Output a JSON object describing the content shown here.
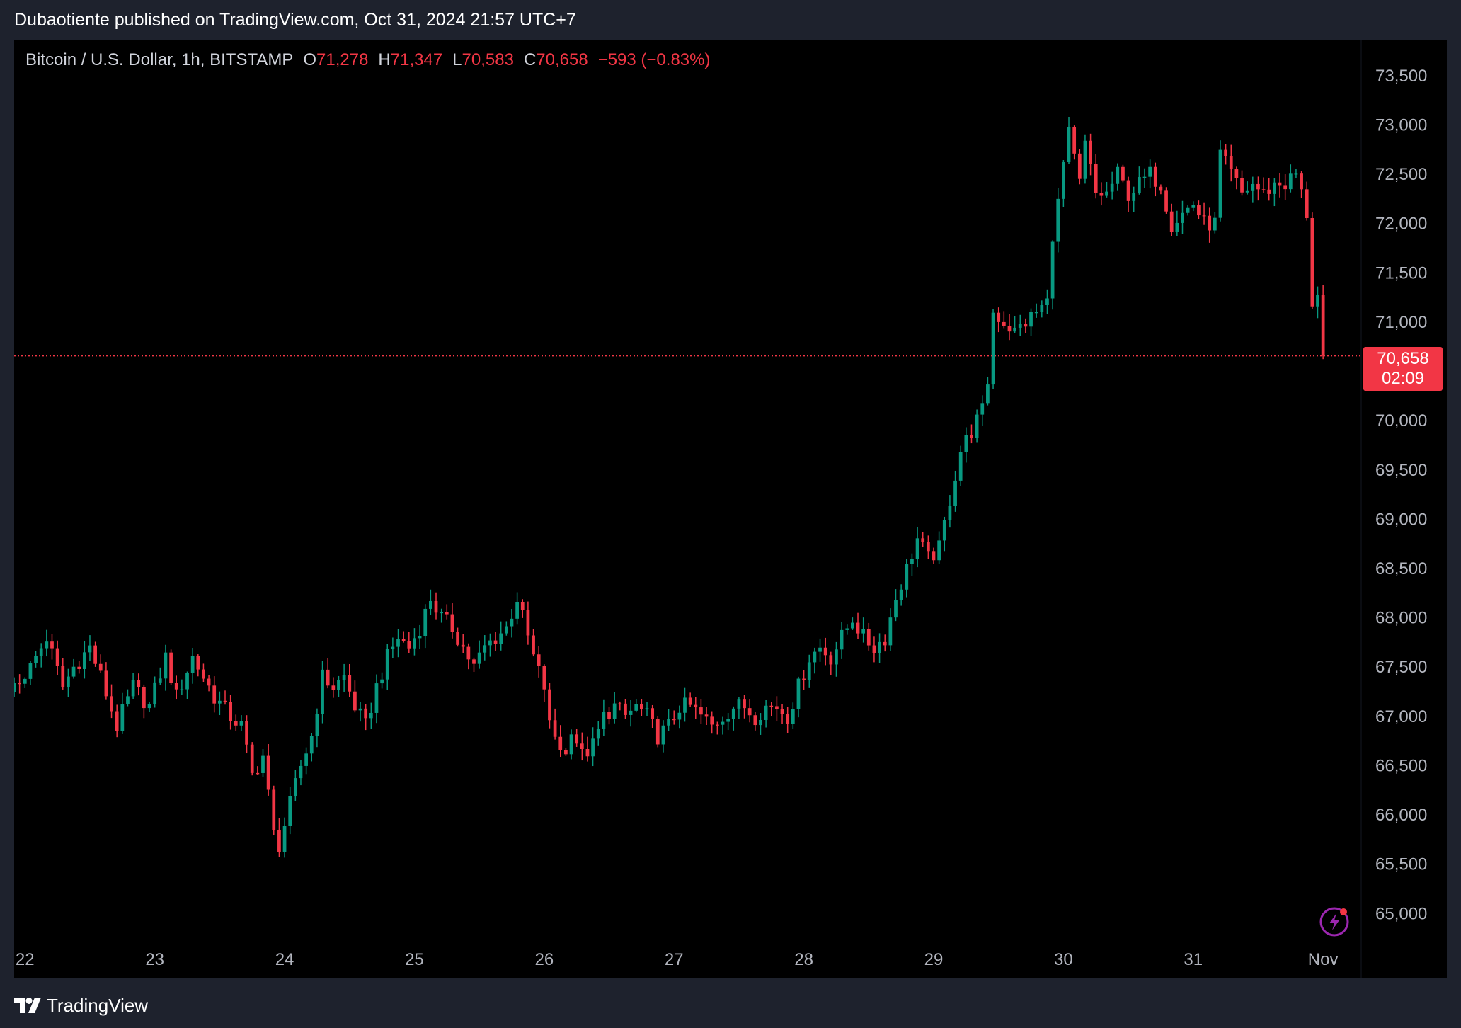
{
  "header": {
    "published": "Dubaotiente published on TradingView.com, Oct 31, 2024 21:57 UTC+7"
  },
  "legend": {
    "symbol": "Bitcoin / U.S. Dollar, 1h, BITSTAMP",
    "open_label": "O",
    "open": "71,278",
    "high_label": "H",
    "high": "71,347",
    "low_label": "L",
    "low": "70,583",
    "close_label": "C",
    "close": "70,658",
    "change": "−593 (−0.83%)"
  },
  "price_tag": {
    "price": "70,658",
    "countdown": "02:09"
  },
  "footer": {
    "brand": "TradingView",
    "logo_icon": "tradingview-logo-icon"
  },
  "badge": {
    "icon": "lightning-bolt-icon"
  },
  "colors": {
    "up": "#089981",
    "down": "#f23645",
    "background": "#000000",
    "frame": "#1e222d",
    "axis_text": "#b2b5be"
  },
  "chart_data": {
    "type": "candlestick",
    "interval": "1h",
    "symbol": "BTCUSD",
    "exchange": "BITSTAMP",
    "y_ticks": [
      65000,
      65500,
      66000,
      66500,
      67000,
      67500,
      68000,
      68500,
      69000,
      69500,
      70000,
      70500,
      71000,
      71500,
      72000,
      72500,
      73000,
      73500
    ],
    "y_tick_labels": [
      "65,000",
      "65,500",
      "66,000",
      "66,500",
      "67,000",
      "67,500",
      "68,000",
      "68,500",
      "69,000",
      "69,500",
      "70,000",
      "",
      "71,000",
      "71,500",
      "72,000",
      "72,500",
      "73,000",
      "73,500"
    ],
    "ylim": [
      64600,
      73650
    ],
    "x_ticks": [
      {
        "label": "22",
        "t": 0
      },
      {
        "label": "23",
        "t": 24
      },
      {
        "label": "24",
        "t": 48
      },
      {
        "label": "25",
        "t": 72
      },
      {
        "label": "26",
        "t": 96
      },
      {
        "label": "27",
        "t": 120
      },
      {
        "label": "28",
        "t": 144
      },
      {
        "label": "29",
        "t": 168
      },
      {
        "label": "30",
        "t": 192
      },
      {
        "label": "31",
        "t": 216
      },
      {
        "label": "Nov",
        "t": 240
      }
    ],
    "xlim": [
      -2,
      246
    ],
    "last_price": 70658,
    "anchors": [
      [
        -2,
        67250
      ],
      [
        2,
        67500
      ],
      [
        5,
        67800
      ],
      [
        8,
        67300
      ],
      [
        10,
        67500
      ],
      [
        13,
        67700
      ],
      [
        15,
        67400
      ],
      [
        18,
        66900
      ],
      [
        21,
        67300
      ],
      [
        24,
        67100
      ],
      [
        27,
        67600
      ],
      [
        29,
        67200
      ],
      [
        32,
        67600
      ],
      [
        34,
        67400
      ],
      [
        36,
        67200
      ],
      [
        39,
        67000
      ],
      [
        41,
        66900
      ],
      [
        43,
        66400
      ],
      [
        45,
        66600
      ],
      [
        47,
        65800
      ],
      [
        48,
        65700
      ],
      [
        50,
        66100
      ],
      [
        52,
        66500
      ],
      [
        54,
        66800
      ],
      [
        56,
        67400
      ],
      [
        58,
        67300
      ],
      [
        60,
        67400
      ],
      [
        62,
        67100
      ],
      [
        64,
        66900
      ],
      [
        66,
        67300
      ],
      [
        68,
        67600
      ],
      [
        70,
        67800
      ],
      [
        72,
        67700
      ],
      [
        74,
        67900
      ],
      [
        76,
        68200
      ],
      [
        78,
        68000
      ],
      [
        80,
        67900
      ],
      [
        82,
        67700
      ],
      [
        84,
        67500
      ],
      [
        86,
        67700
      ],
      [
        88,
        67800
      ],
      [
        90,
        67900
      ],
      [
        92,
        68200
      ],
      [
        95,
        67600
      ],
      [
        97,
        67300
      ],
      [
        98,
        66900
      ],
      [
        99,
        66800
      ],
      [
        101,
        66600
      ],
      [
        102,
        66900
      ],
      [
        104,
        66600
      ],
      [
        106,
        66700
      ],
      [
        108,
        67000
      ],
      [
        110,
        67100
      ],
      [
        112,
        67000
      ],
      [
        114,
        67100
      ],
      [
        116,
        67000
      ],
      [
        118,
        66800
      ],
      [
        120,
        66900
      ],
      [
        122,
        67100
      ],
      [
        124,
        67100
      ],
      [
        126,
        67000
      ],
      [
        128,
        66900
      ],
      [
        130,
        67000
      ],
      [
        132,
        67100
      ],
      [
        134,
        67100
      ],
      [
        136,
        67000
      ],
      [
        138,
        67100
      ],
      [
        140,
        67100
      ],
      [
        142,
        67000
      ],
      [
        144,
        67300
      ],
      [
        146,
        67600
      ],
      [
        148,
        67700
      ],
      [
        150,
        67600
      ],
      [
        152,
        67800
      ],
      [
        154,
        68000
      ],
      [
        156,
        67800
      ],
      [
        158,
        67700
      ],
      [
        160,
        67800
      ],
      [
        162,
        68200
      ],
      [
        164,
        68500
      ],
      [
        166,
        68800
      ],
      [
        168,
        68600
      ],
      [
        170,
        68700
      ],
      [
        172,
        69200
      ],
      [
        174,
        69700
      ],
      [
        176,
        69900
      ],
      [
        178,
        70100
      ],
      [
        179,
        70400
      ],
      [
        180,
        71100
      ],
      [
        182,
        71000
      ],
      [
        184,
        70900
      ],
      [
        186,
        71000
      ],
      [
        188,
        71100
      ],
      [
        190,
        71200
      ],
      [
        191,
        71900
      ],
      [
        192,
        72200
      ],
      [
        193,
        72600
      ],
      [
        194,
        72900
      ],
      [
        196,
        72400
      ],
      [
        197,
        72800
      ],
      [
        199,
        72300
      ],
      [
        201,
        72300
      ],
      [
        203,
        72500
      ],
      [
        205,
        72300
      ],
      [
        207,
        72400
      ],
      [
        209,
        72500
      ],
      [
        211,
        72400
      ],
      [
        213,
        72000
      ],
      [
        215,
        72100
      ],
      [
        217,
        72200
      ],
      [
        219,
        72000
      ],
      [
        221,
        72000
      ],
      [
        222,
        72700
      ],
      [
        224,
        72500
      ],
      [
        226,
        72300
      ],
      [
        228,
        72400
      ],
      [
        230,
        72300
      ],
      [
        232,
        72400
      ],
      [
        234,
        72400
      ],
      [
        236,
        72500
      ],
      [
        237,
        72300
      ],
      [
        238,
        72100
      ],
      [
        239,
        71200
      ],
      [
        240,
        70658
      ]
    ]
  }
}
